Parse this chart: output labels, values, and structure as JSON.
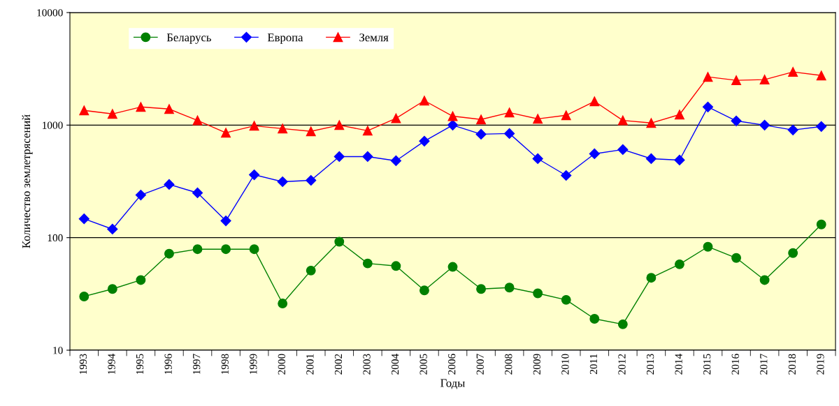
{
  "chart_data": {
    "type": "line",
    "xlabel": "Годы",
    "ylabel": "Количество землетрясений",
    "categories": [
      "1993",
      "1994",
      "1995",
      "1996",
      "1997",
      "1998",
      "1999",
      "2000",
      "2001",
      "2002",
      "2003",
      "2004",
      "2005",
      "2006",
      "2007",
      "2008",
      "2009",
      "2010",
      "2011",
      "2012",
      "2013",
      "2014",
      "2015",
      "2016",
      "2017",
      "2018",
      "2019"
    ],
    "series": [
      {
        "name": "Беларусь",
        "color": "#008000",
        "marker": "circle",
        "values": [
          30,
          35,
          42,
          72,
          79,
          79,
          79,
          26,
          51,
          92,
          59,
          56,
          34,
          55,
          35,
          36,
          32,
          28,
          19,
          17,
          44,
          58,
          83,
          66,
          42,
          73,
          131
        ]
      },
      {
        "name": "Европа",
        "color": "#0000ff",
        "marker": "diamond",
        "values": [
          147,
          119,
          239,
          297,
          250,
          141,
          362,
          314,
          323,
          525,
          525,
          482,
          720,
          1000,
          830,
          842,
          503,
          357,
          556,
          606,
          503,
          489,
          1450,
          1090,
          1000,
          905,
          972
        ]
      },
      {
        "name": "Земля",
        "color": "#ff0000",
        "marker": "triangle",
        "values": [
          1350,
          1257,
          1450,
          1390,
          1100,
          855,
          986,
          931,
          880,
          1000,
          891,
          1150,
          1650,
          1200,
          1122,
          1293,
          1137,
          1222,
          1626,
          1100,
          1044,
          1240,
          2683,
          2500,
          2535,
          2967,
          2760
        ]
      }
    ],
    "log": "y",
    "ylim": [
      10,
      10000
    ],
    "yticks": [
      10,
      100,
      1000,
      10000
    ],
    "grid": "y",
    "legend": "top left"
  }
}
